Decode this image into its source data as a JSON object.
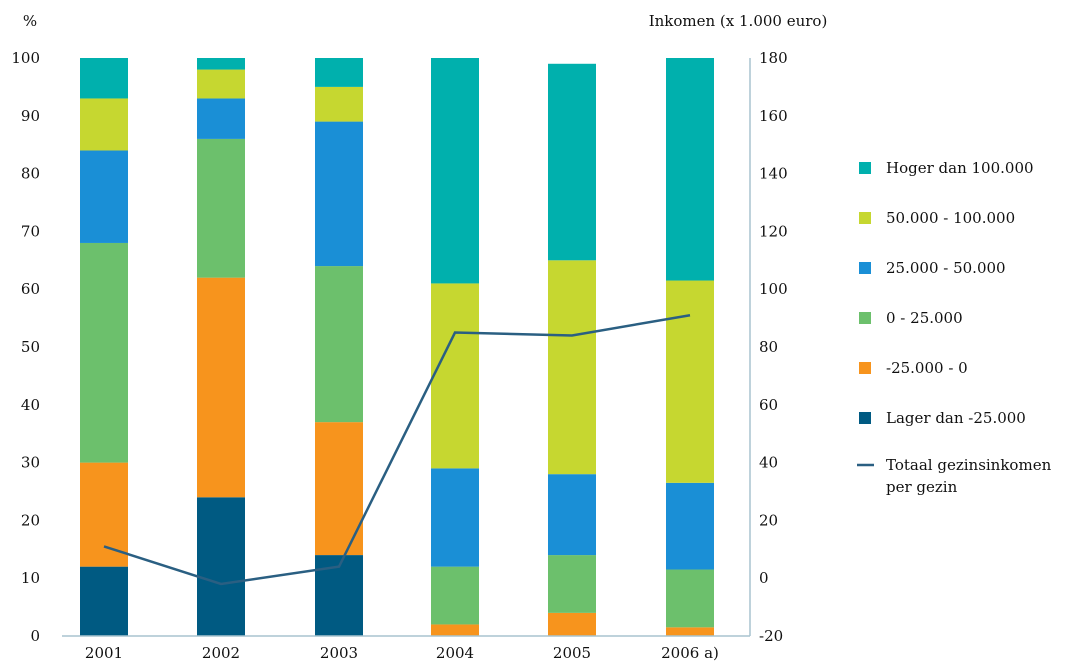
{
  "chart_data": {
    "type": "bar",
    "stacked": true,
    "categories": [
      "2001",
      "2002",
      "2003",
      "2004",
      "2005",
      "2006 a)"
    ],
    "y_left": {
      "label": "%",
      "ylim": [
        0,
        100
      ],
      "ticks": [
        "0",
        "10",
        "20",
        "30",
        "40",
        "50",
        "60",
        "70",
        "80",
        "90",
        "100"
      ]
    },
    "y_right": {
      "label": "Inkomen (x 1.000 euro)",
      "ylim": [
        -20,
        180
      ],
      "ticks": [
        "-20",
        "0",
        "20",
        "40",
        "60",
        "80",
        "100",
        "120",
        "140",
        "160",
        "180"
      ]
    },
    "series": [
      {
        "name": "Lager dan -25.000",
        "color": "#005a82",
        "values": [
          12,
          24,
          14,
          0,
          0,
          0
        ]
      },
      {
        "name": "-25.000 - 0",
        "color": "#f7941d",
        "values": [
          18,
          38,
          23,
          2,
          4,
          1.5
        ]
      },
      {
        "name": "0 - 25.000",
        "color": "#6cc06c",
        "values": [
          38,
          24,
          27,
          10,
          10,
          10
        ]
      },
      {
        "name": "25.000 - 50.000",
        "color": "#1a8fd6",
        "values": [
          16,
          7,
          25,
          17,
          14,
          15
        ]
      },
      {
        "name": "50.000 - 100.000",
        "color": "#c6d730",
        "values": [
          9,
          5,
          6,
          32,
          37,
          35
        ]
      },
      {
        "name": "Hoger dan 100.000",
        "color": "#00b0ad",
        "values": [
          7,
          2,
          5,
          39,
          34,
          38.5
        ]
      }
    ],
    "line": {
      "name": "Totaal gezinsinkomen per gezin",
      "name_lines": [
        "Totaal gezinsinkomen",
        "per gezin"
      ],
      "color": "#2a5f82",
      "axis": "right",
      "values": [
        11,
        -2,
        4,
        85,
        84,
        91
      ]
    },
    "legend_position": "right",
    "grid": false
  }
}
